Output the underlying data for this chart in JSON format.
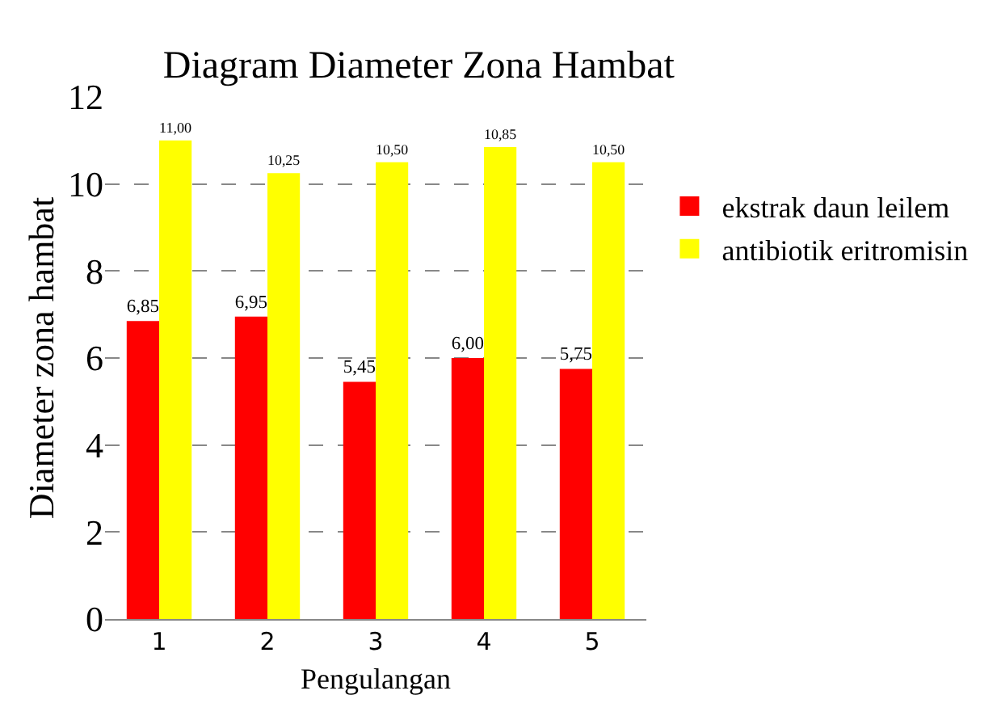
{
  "chart_data": {
    "type": "bar",
    "title": "Diagram Diameter Zona Hambat",
    "xlabel": "Pengulangan",
    "ylabel": "Diameter zona hambat",
    "categories": [
      "1",
      "2",
      "3",
      "4",
      "5"
    ],
    "series": [
      {
        "name": "ekstrak daun leilem",
        "color": "#ff0000",
        "values": [
          6.85,
          6.95,
          5.45,
          6.0,
          5.75
        ],
        "value_labels": [
          "6,85",
          "6,95",
          "5,45",
          "6,00",
          "5,75"
        ]
      },
      {
        "name": "antibiotik eritromisin",
        "color": "#ffff00",
        "values": [
          11.0,
          10.25,
          10.5,
          10.85,
          10.5
        ],
        "value_labels": [
          "11,00",
          "10,25",
          "10,50",
          "10,85",
          "10,50"
        ]
      }
    ],
    "ylim": [
      0,
      12
    ],
    "yticks": [
      0,
      2,
      4,
      6,
      8,
      10,
      12
    ],
    "grid": "y",
    "legend": "right"
  }
}
